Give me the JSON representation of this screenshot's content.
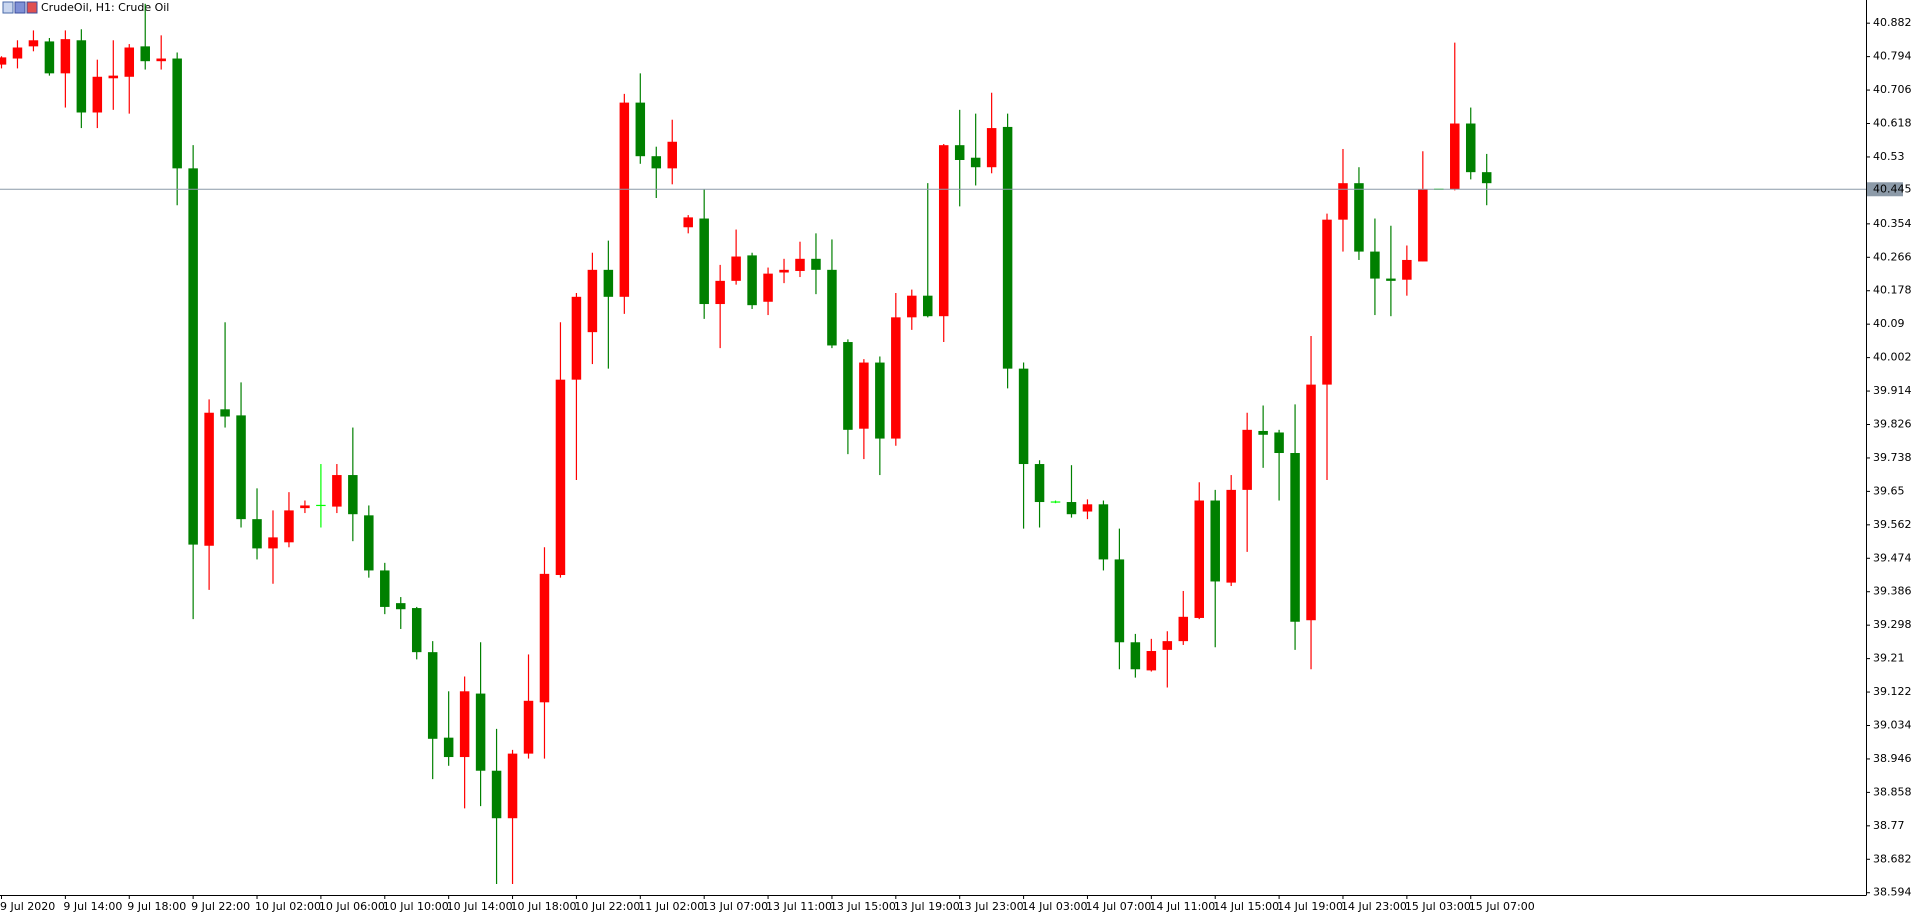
{
  "chart_data": {
    "type": "candlestick",
    "title": "CrudeOil, H1:  Crude Oil",
    "categories": [
      "9 Jul 2020",
      null,
      null,
      null,
      "9 Jul 14:00",
      null,
      null,
      null,
      "9 Jul 18:00",
      null,
      null,
      null,
      "9 Jul 22:00",
      null,
      null,
      null,
      "10 Jul 02:00",
      null,
      null,
      null,
      "10 Jul 06:00",
      null,
      null,
      null,
      "10 Jul 10:00",
      null,
      null,
      null,
      "10 Jul 14:00",
      null,
      null,
      null,
      "10 Jul 18:00",
      null,
      null,
      null,
      "10 Jul 22:00",
      null,
      null,
      null,
      "11 Jul 02:00",
      null,
      null,
      null,
      "13 Jul 07:00",
      null,
      null,
      null,
      "13 Jul 11:00",
      null,
      null,
      null,
      "13 Jul 15:00",
      null,
      null,
      null,
      "13 Jul 19:00",
      null,
      null,
      null,
      "13 Jul 23:00",
      null,
      null,
      null,
      "14 Jul 03:00",
      null,
      null,
      null,
      "14 Jul 07:00",
      null,
      null,
      null,
      "14 Jul 11:00",
      null,
      null,
      null,
      "14 Jul 15:00",
      null,
      null,
      null,
      "14 Jul 19:00",
      null,
      null,
      null,
      "14 Jul 23:00",
      null,
      null,
      null,
      "15 Jul 03:00",
      null,
      null,
      null,
      "15 Jul 07:00",
      null
    ],
    "open": [
      40.773,
      40.789,
      40.821,
      40.834,
      40.75,
      40.837,
      40.647,
      40.737,
      40.741,
      40.821,
      40.782,
      40.789,
      40.5,
      39.507,
      39.866,
      39.85,
      39.577,
      39.5,
      39.516,
      39.606,
      39.613,
      39.61,
      39.693,
      39.587,
      39.442,
      39.356,
      39.343,
      39.227,
      39.002,
      38.951,
      39.118,
      38.915,
      38.79,
      38.96,
      39.095,
      39.43,
      39.944,
      40.069,
      40.233,
      40.162,
      40.673,
      40.532,
      40.5,
      40.345,
      40.368,
      40.143,
      40.204,
      40.271,
      40.149,
      40.226,
      40.23,
      40.262,
      40.233,
      40.043,
      39.815,
      39.989,
      39.789,
      40.108,
      40.165,
      40.111,
      40.561,
      40.528,
      40.503,
      40.609,
      39.973,
      39.722,
      39.622,
      39.622,
      39.597,
      39.616,
      39.471,
      39.253,
      39.179,
      39.233,
      39.256,
      39.317,
      39.626,
      39.41,
      39.654,
      39.809,
      39.805,
      39.751,
      39.311,
      39.931,
      40.365,
      40.461,
      40.281,
      40.21,
      40.207,
      40.255,
      40.445,
      40.445,
      40.618,
      40.49
    ],
    "high": [
      40.795,
      40.837,
      40.863,
      40.843,
      40.863,
      40.866,
      40.786,
      40.837,
      40.827,
      40.933,
      40.85,
      40.805,
      40.561,
      39.892,
      40.095,
      39.937,
      39.658,
      39.6,
      39.648,
      39.626,
      39.722,
      39.722,
      39.818,
      39.613,
      39.462,
      39.372,
      39.346,
      39.256,
      39.124,
      39.163,
      39.253,
      39.025,
      38.97,
      39.221,
      39.503,
      40.095,
      40.172,
      40.278,
      40.31,
      40.696,
      40.75,
      40.557,
      40.628,
      40.377,
      40.445,
      40.246,
      40.339,
      40.278,
      40.239,
      40.262,
      40.307,
      40.329,
      40.313,
      40.05,
      39.998,
      40.005,
      40.172,
      40.181,
      40.461,
      40.564,
      40.654,
      40.644,
      40.699,
      40.644,
      39.989,
      39.732,
      39.626,
      39.719,
      39.629,
      39.626,
      39.552,
      39.275,
      39.262,
      39.282,
      39.388,
      39.674,
      39.654,
      39.693,
      39.857,
      39.876,
      39.812,
      39.879,
      40.059,
      40.381,
      40.551,
      40.503,
      40.368,
      40.349,
      40.297,
      40.545,
      40.445,
      40.831,
      40.66,
      40.538
    ],
    "low": [
      40.763,
      40.763,
      40.808,
      40.744,
      40.66,
      40.606,
      40.606,
      40.654,
      40.644,
      40.76,
      40.76,
      40.403,
      39.314,
      39.391,
      39.818,
      39.555,
      39.471,
      39.407,
      39.503,
      39.593,
      39.555,
      39.593,
      39.519,
      39.423,
      39.327,
      39.288,
      39.208,
      38.893,
      38.928,
      38.816,
      38.822,
      38.617,
      38.617,
      38.947,
      38.947,
      39.423,
      39.68,
      39.985,
      39.973,
      40.117,
      40.512,
      40.422,
      40.458,
      40.329,
      40.104,
      40.027,
      40.194,
      40.13,
      40.114,
      40.198,
      40.214,
      40.169,
      40.027,
      39.748,
      39.735,
      39.693,
      39.77,
      40.075,
      40.108,
      40.043,
      40.4,
      40.455,
      40.487,
      39.921,
      39.552,
      39.555,
      39.619,
      39.581,
      39.577,
      39.442,
      39.182,
      39.16,
      39.176,
      39.134,
      39.246,
      39.314,
      39.24,
      39.401,
      39.491,
      39.712,
      39.626,
      39.233,
      39.182,
      39.68,
      40.281,
      40.259,
      40.114,
      40.111,
      40.165,
      40.255,
      40.445,
      40.442,
      40.471,
      40.403
    ],
    "close": [
      40.792,
      40.818,
      40.837,
      40.75,
      40.84,
      40.647,
      40.741,
      40.744,
      40.818,
      40.782,
      40.789,
      40.5,
      39.51,
      39.857,
      39.847,
      39.577,
      39.5,
      39.529,
      39.6,
      39.613,
      39.613,
      39.693,
      39.59,
      39.442,
      39.346,
      39.34,
      39.227,
      38.999,
      38.951,
      39.124,
      38.915,
      38.79,
      38.96,
      39.099,
      39.433,
      39.944,
      40.162,
      40.233,
      40.162,
      40.673,
      40.532,
      40.5,
      40.57,
      40.371,
      40.143,
      40.204,
      40.268,
      40.14,
      40.223,
      40.233,
      40.262,
      40.233,
      40.034,
      39.812,
      39.989,
      39.789,
      40.108,
      40.165,
      40.111,
      40.561,
      40.522,
      40.503,
      40.606,
      39.973,
      39.722,
      39.622,
      39.622,
      39.59,
      39.616,
      39.471,
      39.253,
      39.182,
      39.23,
      39.256,
      39.32,
      39.626,
      39.413,
      39.654,
      39.812,
      39.799,
      39.751,
      39.307,
      39.931,
      40.365,
      40.461,
      40.281,
      40.21,
      40.204,
      40.259,
      40.445,
      40.445,
      40.618,
      40.49,
      40.461
    ],
    "ylim": [
      38.588,
      40.943
    ],
    "yticks": [
      40.882,
      40.794,
      40.706,
      40.618,
      40.53,
      40.354,
      40.266,
      40.178,
      40.09,
      40.002,
      39.914,
      39.826,
      39.738,
      39.65,
      39.562,
      39.474,
      39.386,
      39.298,
      39.21,
      39.122,
      39.034,
      38.946,
      38.858,
      38.77,
      38.682,
      38.594
    ],
    "current_price": 40.445,
    "current_price_color": "#8c9aa8",
    "up_color": "#ff0000",
    "down_color": "#008000",
    "doji_color": "#00ff00",
    "grid": false
  }
}
